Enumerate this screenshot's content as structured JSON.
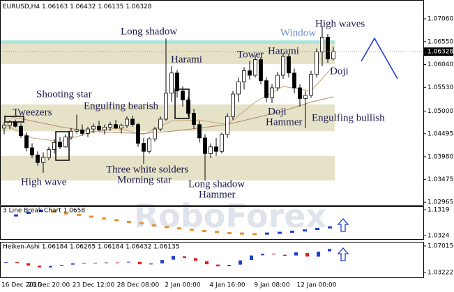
{
  "watermark": "RoboForex",
  "chart_data": [
    {
      "type": "candlestick",
      "title": "EURUSD,H4",
      "categories": [
        "16 Dec 2016",
        null,
        null,
        null,
        null,
        null,
        null,
        null,
        "20 Dec 20:00",
        null,
        null,
        null,
        null,
        null,
        null,
        null,
        "23 Dec 12:00",
        null,
        null,
        null,
        null,
        null,
        null,
        null,
        "28 Dec 08:00",
        null,
        null,
        null,
        null,
        null,
        null,
        null,
        "2 Jan 00:00",
        null,
        null,
        null,
        null,
        null,
        null,
        null,
        "4 Jan 16:00",
        null,
        null,
        null,
        null,
        null,
        null,
        null,
        "9 Jan 08:00",
        null,
        null,
        null,
        null,
        null,
        null,
        null,
        "12 Jan 00:00",
        null,
        null,
        null
      ],
      "open": [
        1.0462,
        1.0468,
        1.0476,
        1.0466,
        1.0445,
        1.0418,
        1.0402,
        1.0385,
        1.0396,
        1.0414,
        1.043,
        1.042,
        1.0442,
        1.0455,
        1.0458,
        1.045,
        1.046,
        1.0466,
        1.0458,
        1.0464,
        1.047,
        1.0462,
        1.0468,
        1.0482,
        1.047,
        1.0428,
        1.041,
        1.0438,
        1.046,
        1.0482,
        1.054,
        1.0585,
        1.0545,
        1.0525,
        1.0495,
        1.047,
        1.044,
        1.0405,
        1.042,
        1.041,
        1.0448,
        1.0488,
        1.0538,
        1.0565,
        1.059,
        1.058,
        1.0615,
        1.0568,
        1.053,
        1.0552,
        1.058,
        1.0622,
        1.0585,
        1.0552,
        1.0528,
        1.0535,
        1.0582,
        1.0632,
        1.0665,
        1.06163
      ],
      "high": [
        1.0475,
        1.048,
        1.0481,
        1.0472,
        1.0452,
        1.0428,
        1.041,
        1.0408,
        1.042,
        1.0438,
        1.0442,
        1.0448,
        1.0462,
        1.0492,
        1.047,
        1.0465,
        1.0472,
        1.0478,
        1.047,
        1.0476,
        1.048,
        1.0472,
        1.0488,
        1.049,
        1.0474,
        1.044,
        1.0442,
        1.0465,
        1.0488,
        1.0662,
        1.06,
        1.0592,
        1.0555,
        1.0532,
        1.0505,
        1.0478,
        1.0448,
        1.0428,
        1.044,
        1.0452,
        1.0495,
        1.0545,
        1.0575,
        1.0598,
        1.0612,
        1.0625,
        1.062,
        1.0575,
        1.056,
        1.0588,
        1.063,
        1.0628,
        1.0595,
        1.056,
        1.0545,
        1.059,
        1.064,
        1.069,
        1.0672,
        1.06432
      ],
      "low": [
        1.0448,
        1.046,
        1.0463,
        1.044,
        1.041,
        1.0395,
        1.0378,
        1.0362,
        1.039,
        1.0405,
        1.0415,
        1.0418,
        1.0436,
        1.045,
        1.0445,
        1.0442,
        1.0452,
        1.0455,
        1.0448,
        1.0456,
        1.046,
        1.045,
        1.0462,
        1.0465,
        1.042,
        1.0382,
        1.0405,
        1.0432,
        1.0455,
        1.0478,
        1.052,
        1.053,
        1.051,
        1.0488,
        1.046,
        1.043,
        1.0345,
        1.0395,
        1.04,
        1.0405,
        1.044,
        1.048,
        1.052,
        1.0548,
        1.057,
        1.0575,
        1.056,
        1.052,
        1.0518,
        1.0545,
        1.0572,
        1.0575,
        1.054,
        1.051,
        1.0462,
        1.053,
        1.0575,
        1.06,
        1.0608,
        1.06135
      ],
      "close": [
        1.0468,
        1.0476,
        1.0466,
        1.0445,
        1.0418,
        1.0402,
        1.0385,
        1.0396,
        1.0414,
        1.043,
        1.042,
        1.0442,
        1.0455,
        1.0458,
        1.045,
        1.046,
        1.0466,
        1.0458,
        1.0464,
        1.047,
        1.0462,
        1.0468,
        1.0482,
        1.047,
        1.0428,
        1.041,
        1.0438,
        1.046,
        1.0482,
        1.054,
        1.0585,
        1.0545,
        1.0525,
        1.0495,
        1.047,
        1.044,
        1.0405,
        1.042,
        1.041,
        1.0448,
        1.0488,
        1.0538,
        1.0565,
        1.059,
        1.058,
        1.0615,
        1.0568,
        1.053,
        1.0552,
        1.058,
        1.0622,
        1.0585,
        1.0552,
        1.0528,
        1.0535,
        1.0582,
        1.0632,
        1.0665,
        1.06163,
        1.06328
      ],
      "up_color": "#ffffff",
      "down_color": "#000000",
      "ylim": [
        1.0292,
        1.0745
      ],
      "yticks": [
        {
          "value": 1.0706,
          "label": "1.07060"
        },
        {
          "value": 1.0655,
          "label": "1.06550"
        },
        {
          "value": 1.0604,
          "label": "1.06040"
        },
        {
          "value": 1.0553,
          "label": "1.05530"
        },
        {
          "value": 1.05,
          "label": "1.05000"
        },
        1.04495,
        {
          "value": 1.0398,
          "label": "1.03980"
        },
        1.03475,
        1.02965
      ],
      "zones": [
        [
          1.0605,
          1.0655
        ],
        [
          1.0455,
          1.0515
        ],
        [
          1.0345,
          1.04
        ]
      ],
      "zone_color": "#e6e2c8",
      "window": [
        1.065,
        1.0658
      ],
      "window_color": "#a8e6dc",
      "lines": [
        {
          "color": "#b08a6a",
          "x": [
            0,
            5,
            10,
            15,
            20,
            25,
            30,
            35,
            40,
            45,
            50,
            55,
            59
          ],
          "values": [
            1.049,
            1.0478,
            1.0465,
            1.0455,
            1.0452,
            1.045,
            1.0455,
            1.0462,
            1.047,
            1.0485,
            1.05,
            1.052,
            1.0532
          ]
        },
        {
          "color": "#c7a27e",
          "x": [
            0,
            5,
            10,
            15,
            20,
            25,
            30,
            35,
            40,
            45,
            50,
            55,
            59
          ],
          "values": [
            1.047,
            1.044,
            1.0432,
            1.045,
            1.0462,
            1.0448,
            1.0478,
            1.048,
            1.047,
            1.052,
            1.0555,
            1.0545,
            1.06
          ]
        }
      ],
      "annotations": [
        "Tweezers",
        "Shooting star",
        "Engulfing bearish",
        "High wave",
        "Long shadow",
        "Harami",
        "Three white solders",
        "Morning star",
        "Long shadow",
        "Hammer",
        "Tower",
        "Harami",
        "Window",
        "High waves",
        "Doji",
        "Doji",
        "Hammer",
        "Engulfing bullish"
      ]
    },
    {
      "type": "line_break",
      "title": "3 Line Break Chart 1.0658",
      "values": [
        1.11,
        1.12,
        1.128,
        1.125,
        1.118,
        1.112,
        1.105,
        1.098,
        1.092,
        1.085,
        1.08,
        1.072,
        1.065,
        1.06,
        1.055,
        1.05,
        1.046,
        1.042,
        1.04,
        1.038,
        1.04,
        1.043,
        1.047,
        1.052,
        1.058,
        1.064
      ],
      "up_color": "#1f3fd0",
      "down_color": "#e8922c",
      "ylim": [
        1.0189,
        1.1454
      ],
      "yticks": [
        1.1319,
        1.0324
      ]
    },
    {
      "type": "heiken_ashi",
      "title": "Heiken-Ashi 1.06184 1.06265 1.06184 1.06432 1.06135",
      "open": [
        1.046,
        1.0472,
        1.0455,
        1.042,
        1.0395,
        1.0418,
        1.0435,
        1.0454,
        1.0458,
        1.0462,
        1.0466,
        1.0465,
        1.0475,
        1.0438,
        1.0452,
        1.0505,
        1.0555,
        1.0528,
        1.0485,
        1.0435,
        1.0412,
        1.0435,
        1.05,
        1.0568,
        1.0592,
        1.0575,
        1.0565,
        1.06,
        1.0548,
        1.0625
      ],
      "close": [
        1.047,
        1.046,
        1.042,
        1.0395,
        1.0415,
        1.0432,
        1.0452,
        1.0458,
        1.0462,
        1.0466,
        1.0464,
        1.0475,
        1.044,
        1.045,
        1.05,
        1.056,
        1.053,
        1.049,
        1.044,
        1.041,
        1.043,
        1.0495,
        1.0565,
        1.059,
        1.058,
        1.056,
        1.061,
        1.055,
        1.062,
        1.066
      ],
      "up_color": "#1f3fd0",
      "down_color": "#e02020",
      "ylim": [
        1.0252,
        1.0761
      ],
      "yticks": [
        1.07015,
        1.03222
      ]
    }
  ]
}
